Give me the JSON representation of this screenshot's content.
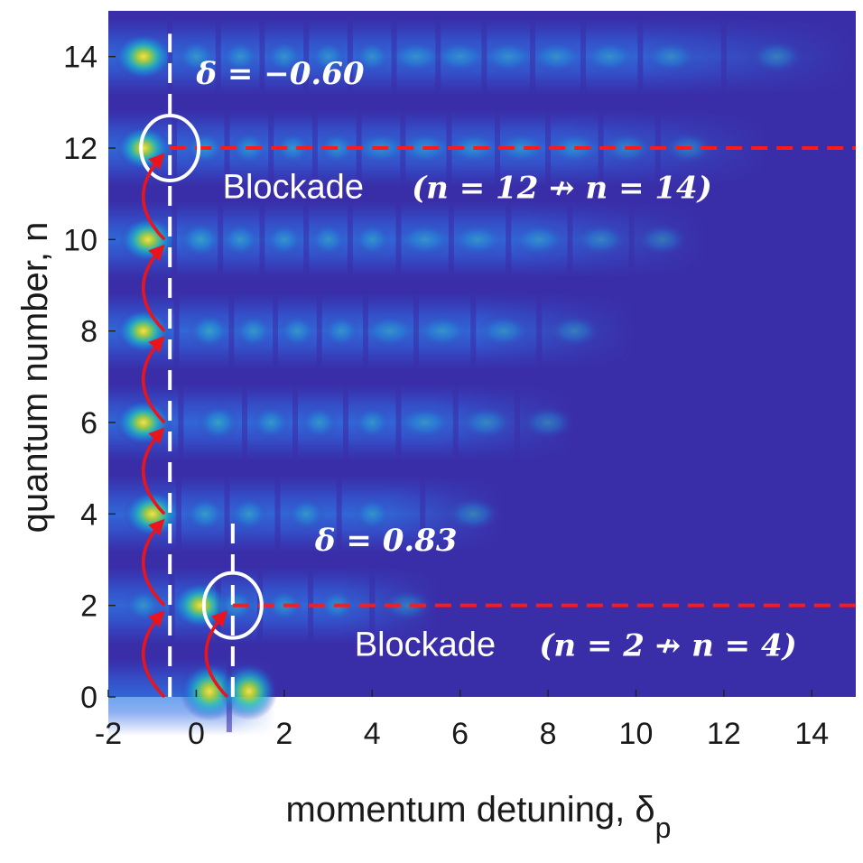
{
  "chart_data": {
    "type": "heatmap",
    "title": "",
    "xlabel": "momentum detuning, δ",
    "xlabel_subscript": "p",
    "ylabel": "quantum number, n",
    "xlim": [
      -2,
      15
    ],
    "ylim": [
      0,
      15
    ],
    "xticks": [
      "-2",
      "0",
      "2",
      "4",
      "6",
      "8",
      "10",
      "12",
      "14"
    ],
    "xtick_values": [
      -2,
      0,
      2,
      4,
      6,
      8,
      10,
      12,
      14
    ],
    "yticks": [
      "0",
      "2",
      "4",
      "6",
      "8",
      "10",
      "12",
      "14"
    ],
    "ytick_values": [
      0,
      2,
      4,
      6,
      8,
      10,
      12,
      14
    ],
    "colormap": "parula",
    "background_color": "#3a2ea8",
    "bands": [
      {
        "n": 0,
        "x_end": 1.8,
        "peaks": [
          [
            0.3,
            0.95
          ],
          [
            1.2,
            0.9
          ]
        ]
      },
      {
        "n": 2,
        "x_end": 5.5,
        "peaks": [
          [
            -1.2,
            0.4
          ],
          [
            0.1,
            0.95
          ],
          [
            0.9,
            0.45
          ],
          [
            2.0,
            0.4
          ],
          [
            3.2,
            0.38
          ],
          [
            4.8,
            0.36
          ]
        ]
      },
      {
        "n": 4,
        "x_end": 7.0,
        "peaks": [
          [
            -1.0,
            0.95
          ],
          [
            0.2,
            0.5
          ],
          [
            1.2,
            0.45
          ],
          [
            2.5,
            0.42
          ],
          [
            4.0,
            0.4
          ],
          [
            6.3,
            0.42
          ]
        ]
      },
      {
        "n": 6,
        "x_end": 8.6,
        "peaks": [
          [
            -1.2,
            0.9
          ],
          [
            0.5,
            0.55
          ],
          [
            1.7,
            0.45
          ],
          [
            2.8,
            0.42
          ],
          [
            4.0,
            0.4
          ],
          [
            5.2,
            0.4
          ],
          [
            6.6,
            0.4
          ],
          [
            8.0,
            0.38
          ]
        ]
      },
      {
        "n": 8,
        "x_end": 10.0,
        "peaks": [
          [
            -1.2,
            0.85
          ],
          [
            0.3,
            0.55
          ],
          [
            1.3,
            0.45
          ],
          [
            2.3,
            0.42
          ],
          [
            3.3,
            0.4
          ],
          [
            4.4,
            0.4
          ],
          [
            5.6,
            0.4
          ],
          [
            7.0,
            0.38
          ],
          [
            8.6,
            0.36
          ]
        ]
      },
      {
        "n": 10,
        "x_end": 11.6,
        "peaks": [
          [
            -1.1,
            0.9
          ],
          [
            0.1,
            0.55
          ],
          [
            1.0,
            0.45
          ],
          [
            2.0,
            0.42
          ],
          [
            3.0,
            0.4
          ],
          [
            4.0,
            0.4
          ],
          [
            5.2,
            0.4
          ],
          [
            6.4,
            0.38
          ],
          [
            7.8,
            0.38
          ],
          [
            9.2,
            0.36
          ],
          [
            10.6,
            0.34
          ]
        ]
      },
      {
        "n": 12,
        "x_end": 13.0,
        "peaks": [
          [
            -1.2,
            0.85
          ],
          [
            0.2,
            0.45
          ],
          [
            1.2,
            0.42
          ],
          [
            2.2,
            0.4
          ],
          [
            3.2,
            0.4
          ],
          [
            4.2,
            0.38
          ],
          [
            5.2,
            0.38
          ],
          [
            6.3,
            0.38
          ],
          [
            7.4,
            0.36
          ],
          [
            8.6,
            0.36
          ],
          [
            9.8,
            0.34
          ],
          [
            11.2,
            0.34
          ]
        ]
      },
      {
        "n": 14,
        "x_end": 15.0,
        "peaks": [
          [
            -1.2,
            0.95
          ],
          [
            0.0,
            0.45
          ],
          [
            1.0,
            0.4
          ],
          [
            2.0,
            0.4
          ],
          [
            3.0,
            0.38
          ],
          [
            4.0,
            0.38
          ],
          [
            5.0,
            0.38
          ],
          [
            6.0,
            0.36
          ],
          [
            7.1,
            0.36
          ],
          [
            8.2,
            0.36
          ],
          [
            9.4,
            0.35
          ],
          [
            10.8,
            0.35
          ],
          [
            13.2,
            0.38
          ]
        ]
      }
    ],
    "annotations": {
      "vertical_lines": [
        {
          "x": -0.6,
          "y_from": 0,
          "y_to": 14.5,
          "color": "#ffffff"
        },
        {
          "x": 0.83,
          "y_from": 0,
          "y_to": 4.0,
          "color": "#ffffff"
        }
      ],
      "horizontal_lines": [
        {
          "y": 12,
          "x_from": -0.6,
          "x_to": 15,
          "color": "#ff1a1a"
        },
        {
          "y": 2,
          "x_from": 0.83,
          "x_to": 15,
          "color": "#ff1a1a"
        }
      ],
      "circles": [
        {
          "x": -0.6,
          "y": 12
        },
        {
          "x": 0.83,
          "y": 2
        }
      ],
      "arrows_color": "#e8141e",
      "arrows": [
        {
          "x": -0.6,
          "from_n": 0,
          "to_n": 2
        },
        {
          "x": -0.6,
          "from_n": 2,
          "to_n": 4
        },
        {
          "x": -0.6,
          "from_n": 4,
          "to_n": 6
        },
        {
          "x": -0.6,
          "from_n": 6,
          "to_n": 8
        },
        {
          "x": -0.6,
          "from_n": 8,
          "to_n": 10
        },
        {
          "x": -0.6,
          "from_n": 10,
          "to_n": 12
        },
        {
          "x": 0.83,
          "from_n": 0,
          "to_n": 2
        }
      ],
      "labels": [
        {
          "id": "delta-top",
          "text": "δ = −0.60",
          "x": 0.0,
          "y": 13.4
        },
        {
          "id": "blockade-top",
          "text": "Blockade",
          "x": 0.6,
          "y": 10.9
        },
        {
          "id": "cond-top",
          "text": "(n = 12 ↛ n = 14)",
          "x": 4.9,
          "y": 10.9
        },
        {
          "id": "delta-bottom",
          "text": "δ = 0.83",
          "x": 2.7,
          "y": 3.2
        },
        {
          "id": "blockade-bottom",
          "text": "Blockade",
          "x": 3.6,
          "y": 0.9
        },
        {
          "id": "cond-bottom",
          "text": "(n = 2 ↛ n = 4)",
          "x": 7.8,
          "y": 0.9
        }
      ]
    }
  }
}
